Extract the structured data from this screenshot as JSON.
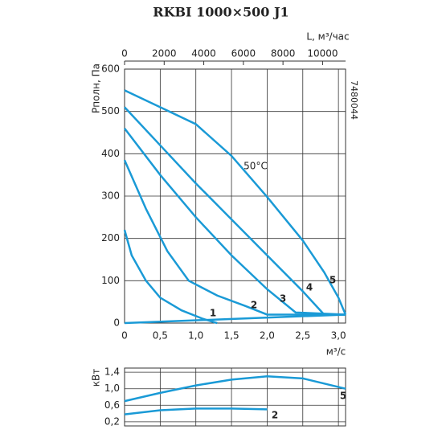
{
  "chart_data": [
    {
      "type": "line",
      "title": "RKBI 1000×500 J1",
      "code": "7480044",
      "annotation": "50°C",
      "ylabel": "Pполн, Па",
      "xlabel": "м³/с",
      "x2label": "L, м³/час",
      "xlim": [
        0,
        3.1
      ],
      "xticks": [
        0,
        {
          "value": 0.5,
          "label": "0,5"
        },
        {
          "value": 1.0,
          "label": "1,0"
        },
        {
          "value": 1.5,
          "label": "1,5"
        },
        {
          "value": 2.0,
          "label": "2,0"
        },
        {
          "value": 2.5,
          "label": "2,5"
        },
        {
          "value": 3.0,
          "label": "3,0"
        }
      ],
      "x2lim": [
        0,
        11160
      ],
      "x2ticks": [
        0,
        2000,
        4000,
        6000,
        8000,
        10000
      ],
      "ylim": [
        0,
        600
      ],
      "yticks": [
        0,
        100,
        200,
        300,
        400,
        500,
        600
      ],
      "grid": true,
      "series": [
        {
          "name": "1",
          "color": "#1a9ad6",
          "x": [
            0,
            0.1,
            0.3,
            0.5,
            0.8,
            1.1,
            1.3
          ],
          "values": [
            220,
            160,
            100,
            60,
            30,
            10,
            0
          ]
        },
        {
          "name": "2",
          "color": "#1a9ad6",
          "x": [
            0,
            0.3,
            0.6,
            0.9,
            1.3,
            1.7,
            2.0,
            3.1
          ],
          "values": [
            385,
            270,
            170,
            100,
            65,
            40,
            20,
            20
          ]
        },
        {
          "name": "3",
          "color": "#1a9ad6",
          "x": [
            0,
            0.5,
            1.0,
            1.5,
            2.0,
            2.4,
            3.1
          ],
          "values": [
            460,
            350,
            250,
            160,
            80,
            25,
            20
          ]
        },
        {
          "name": "4",
          "color": "#1a9ad6",
          "x": [
            0,
            0.5,
            1.0,
            1.5,
            2.0,
            2.5,
            2.8,
            3.1
          ],
          "values": [
            510,
            420,
            330,
            245,
            160,
            75,
            20,
            20
          ]
        },
        {
          "name": "5",
          "color": "#1a9ad6",
          "x": [
            0,
            0.5,
            1.0,
            1.5,
            2.0,
            2.5,
            2.8,
            3.0,
            3.1
          ],
          "values": [
            550,
            510,
            470,
            395,
            298,
            195,
            120,
            60,
            20
          ]
        },
        {
          "color": "#1a9ad6",
          "x": [
            0,
            3.1
          ],
          "values": [
            0,
            20
          ]
        }
      ]
    },
    {
      "type": "line",
      "ylabel": "кВт",
      "xlim": [
        0,
        3.1
      ],
      "xticks": [
        0,
        0.5,
        1.0,
        1.5,
        2.0,
        2.5,
        3.0
      ],
      "ylim": [
        0.1,
        1.5
      ],
      "yticks": [
        {
          "value": 0.2,
          "label": "0,2"
        },
        {
          "value": 0.6,
          "label": "0,6"
        },
        {
          "value": 1.0,
          "label": "1,0"
        },
        {
          "value": 1.4,
          "label": "1,4"
        }
      ],
      "grid": true,
      "series": [
        {
          "name": "5",
          "color": "#1a9ad6",
          "x": [
            0,
            0.5,
            1.0,
            1.5,
            2.0,
            2.5,
            3.1
          ],
          "values": [
            0.7,
            0.9,
            1.08,
            1.22,
            1.3,
            1.25,
            1.0
          ]
        },
        {
          "name": "2",
          "color": "#1a9ad6",
          "x": [
            0,
            0.5,
            1.0,
            1.5,
            2.0
          ],
          "values": [
            0.38,
            0.48,
            0.52,
            0.52,
            0.5
          ]
        }
      ]
    }
  ]
}
